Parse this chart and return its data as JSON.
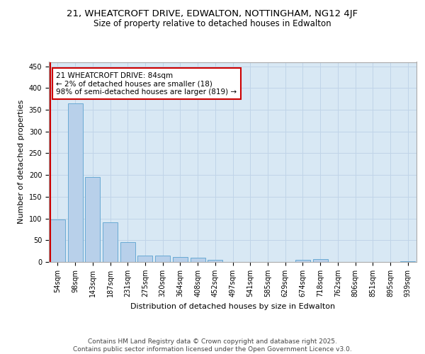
{
  "title_line1": "21, WHEATCROFT DRIVE, EDWALTON, NOTTINGHAM, NG12 4JF",
  "title_line2": "Size of property relative to detached houses in Edwalton",
  "xlabel": "Distribution of detached houses by size in Edwalton",
  "ylabel": "Number of detached properties",
  "categories": [
    "54sqm",
    "98sqm",
    "143sqm",
    "187sqm",
    "231sqm",
    "275sqm",
    "320sqm",
    "364sqm",
    "408sqm",
    "452sqm",
    "497sqm",
    "541sqm",
    "585sqm",
    "629sqm",
    "674sqm",
    "718sqm",
    "762sqm",
    "806sqm",
    "851sqm",
    "895sqm",
    "939sqm"
  ],
  "values": [
    97,
    365,
    195,
    92,
    46,
    15,
    14,
    11,
    9,
    5,
    0,
    0,
    0,
    0,
    5,
    6,
    0,
    0,
    0,
    0,
    2
  ],
  "bar_color": "#b8d0ea",
  "bar_edge_color": "#6aaad4",
  "grid_color": "#c0d4e8",
  "background_color": "#d8e8f4",
  "annotation_text": "21 WHEATCROFT DRIVE: 84sqm\n← 2% of detached houses are smaller (18)\n98% of semi-detached houses are larger (819) →",
  "annotation_box_color": "#ffffff",
  "annotation_box_edge": "#cc0000",
  "vline_color": "#cc0000",
  "ylim": [
    0,
    460
  ],
  "yticks": [
    0,
    50,
    100,
    150,
    200,
    250,
    300,
    350,
    400,
    450
  ],
  "footer_text": "Contains HM Land Registry data © Crown copyright and database right 2025.\nContains public sector information licensed under the Open Government Licence v3.0.",
  "title_fontsize": 9.5,
  "subtitle_fontsize": 8.5,
  "axis_label_fontsize": 8,
  "tick_fontsize": 7,
  "annotation_fontsize": 7.5,
  "footer_fontsize": 6.5
}
